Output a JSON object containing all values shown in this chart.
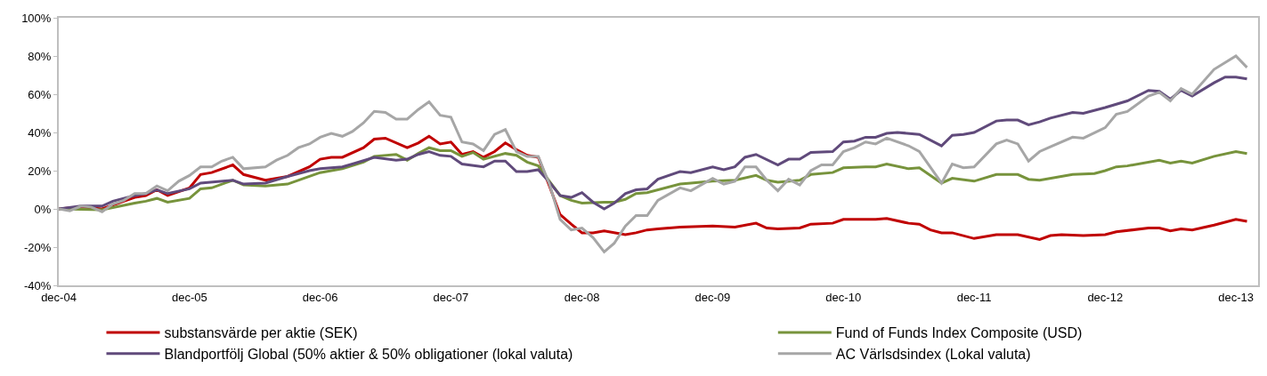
{
  "chart_data": {
    "type": "line",
    "xlim": [
      "2004-12",
      "2014-02"
    ],
    "xticks": [
      {
        "value": "2004-12",
        "label": "dec-04"
      },
      {
        "value": "2005-12",
        "label": "dec-05"
      },
      {
        "value": "2006-12",
        "label": "dec-06"
      },
      {
        "value": "2007-12",
        "label": "dec-07"
      },
      {
        "value": "2008-12",
        "label": "dec-08"
      },
      {
        "value": "2009-12",
        "label": "dec-09"
      },
      {
        "value": "2010-12",
        "label": "dec-10"
      },
      {
        "value": "2011-12",
        "label": "dec-11"
      },
      {
        "value": "2012-12",
        "label": "dec-12"
      },
      {
        "value": "2013-12",
        "label": "dec-13"
      }
    ],
    "ylim": [
      -40,
      100
    ],
    "yticks": [
      {
        "value": -40,
        "label": "-40%"
      },
      {
        "value": -20,
        "label": "-20%"
      },
      {
        "value": 0,
        "label": "0%"
      },
      {
        "value": 20,
        "label": "20%"
      },
      {
        "value": 40,
        "label": "40%"
      },
      {
        "value": 60,
        "label": "60%"
      },
      {
        "value": 80,
        "label": "80%"
      },
      {
        "value": 100,
        "label": "100%"
      }
    ],
    "grid": false,
    "legend": "bottom",
    "marker": "none",
    "line_style": "solid",
    "series": [
      {
        "name": "substansvärde per aktie (SEK)",
        "color": "#c00000",
        "x": [
          "2004-12",
          "2005-02",
          "2005-04",
          "2005-07",
          "2005-08",
          "2005-09",
          "2005-10",
          "2005-12",
          "2006-01",
          "2006-02",
          "2006-04",
          "2006-05",
          "2006-07",
          "2006-09",
          "2006-11",
          "2006-12",
          "2007-01",
          "2007-02",
          "2007-04",
          "2007-05",
          "2007-06",
          "2007-08",
          "2007-09",
          "2007-10",
          "2007-11",
          "2007-12",
          "2008-01",
          "2008-02",
          "2008-03",
          "2008-04",
          "2008-05",
          "2008-06",
          "2008-07",
          "2008-08",
          "2008-09",
          "2008-10",
          "2008-11",
          "2008-12",
          "2009-01",
          "2009-02",
          "2009-04",
          "2009-05",
          "2009-06",
          "2009-07",
          "2009-09",
          "2009-12",
          "2010-02",
          "2010-04",
          "2010-05",
          "2010-06",
          "2010-08",
          "2010-09",
          "2010-11",
          "2010-12",
          "2011-01",
          "2011-03",
          "2011-04",
          "2011-06",
          "2011-07",
          "2011-08",
          "2011-09",
          "2011-10",
          "2011-12",
          "2012-02",
          "2012-04",
          "2012-06",
          "2012-07",
          "2012-08",
          "2012-10",
          "2012-12",
          "2013-01",
          "2013-04",
          "2013-05",
          "2013-06",
          "2013-07",
          "2013-08",
          "2013-10",
          "2013-12",
          "2014-01"
        ],
        "values": [
          0,
          1,
          0,
          6,
          7,
          10,
          7,
          11,
          18,
          19,
          23,
          18,
          15,
          17,
          22,
          26,
          27,
          27,
          32,
          36.5,
          37,
          32,
          34.5,
          38,
          34,
          35,
          28.5,
          30,
          27,
          30,
          34.5,
          31,
          28,
          27,
          12,
          -3,
          -8,
          -12.5,
          -12.5,
          -11.5,
          -13.5,
          -12.5,
          -11,
          -10.5,
          -9.5,
          -9,
          -9.5,
          -7.5,
          -10,
          -10.5,
          -10,
          -8,
          -7.5,
          -5.5,
          -5.5,
          -5.5,
          -5,
          -7.5,
          -8,
          -11,
          -12.5,
          -12.5,
          -15.5,
          -13.5,
          -13.5,
          -16,
          -14,
          -13.5,
          -14,
          -13.5,
          -12,
          -10,
          -10,
          -11.5,
          -10.5,
          -11,
          -8.5,
          -5.5,
          -6.5
        ]
      },
      {
        "name": "Fund of Funds Index Composite (USD)",
        "color": "#77933c",
        "x": [
          "2004-12",
          "2005-04",
          "2005-07",
          "2005-08",
          "2005-09",
          "2005-10",
          "2005-12",
          "2006-01",
          "2006-02",
          "2006-04",
          "2006-05",
          "2006-07",
          "2006-09",
          "2006-11",
          "2006-12",
          "2007-02",
          "2007-04",
          "2007-05",
          "2007-07",
          "2007-08",
          "2007-09",
          "2007-10",
          "2007-11",
          "2007-12",
          "2008-01",
          "2008-02",
          "2008-03",
          "2008-05",
          "2008-06",
          "2008-07",
          "2008-08",
          "2008-09",
          "2008-10",
          "2008-11",
          "2008-12",
          "2009-02",
          "2009-03",
          "2009-04",
          "2009-05",
          "2009-06",
          "2009-09",
          "2009-10",
          "2009-12",
          "2010-02",
          "2010-04",
          "2010-05",
          "2010-06",
          "2010-08",
          "2010-09",
          "2010-11",
          "2010-12",
          "2011-02",
          "2011-03",
          "2011-04",
          "2011-06",
          "2011-07",
          "2011-09",
          "2011-10",
          "2011-12",
          "2012-02",
          "2012-04",
          "2012-05",
          "2012-06",
          "2012-09",
          "2012-11",
          "2012-12",
          "2013-01",
          "2013-02",
          "2013-05",
          "2013-06",
          "2013-07",
          "2013-08",
          "2013-10",
          "2013-12",
          "2014-01"
        ],
        "values": [
          0,
          -0.5,
          3,
          4,
          5.5,
          3.5,
          5.5,
          10.5,
          11,
          15,
          12.5,
          12,
          13,
          17,
          19,
          21,
          24.5,
          27.5,
          28.5,
          25.5,
          29,
          32,
          30.5,
          30.5,
          27.5,
          29.5,
          26,
          29,
          28,
          24.5,
          22.5,
          14.5,
          7,
          4.5,
          3,
          3.5,
          3.5,
          5,
          8,
          8.5,
          13,
          13.5,
          14.5,
          15,
          17.5,
          15,
          14,
          15,
          18,
          19,
          21.5,
          22,
          22,
          23.5,
          21,
          21.5,
          13.5,
          16,
          14.5,
          18,
          18,
          15.5,
          15,
          18,
          18.5,
          20,
          22,
          22.5,
          25.5,
          24,
          25,
          24,
          27.5,
          30,
          29
        ]
      },
      {
        "name": "Blandportfölj Global (50% aktier & 50% obligationer (lokal valuta)",
        "color": "#604a7b",
        "x": [
          "2004-12",
          "2005-02",
          "2005-04",
          "2005-05",
          "2005-07",
          "2005-08",
          "2005-09",
          "2005-10",
          "2005-12",
          "2006-01",
          "2006-04",
          "2006-05",
          "2006-07",
          "2006-09",
          "2006-11",
          "2006-12",
          "2007-02",
          "2007-03",
          "2007-05",
          "2007-07",
          "2007-08",
          "2007-09",
          "2007-10",
          "2007-11",
          "2007-12",
          "2008-01",
          "2008-03",
          "2008-04",
          "2008-05",
          "2008-06",
          "2008-07",
          "2008-08",
          "2008-09",
          "2008-10",
          "2008-11",
          "2008-12",
          "2009-01",
          "2009-02",
          "2009-03",
          "2009-04",
          "2009-05",
          "2009-06",
          "2009-07",
          "2009-09",
          "2009-10",
          "2009-12",
          "2010-01",
          "2010-02",
          "2010-03",
          "2010-04",
          "2010-06",
          "2010-07",
          "2010-08",
          "2010-09",
          "2010-11",
          "2010-12",
          "2011-01",
          "2011-02",
          "2011-03",
          "2011-04",
          "2011-05",
          "2011-07",
          "2011-09",
          "2011-10",
          "2011-11",
          "2011-12",
          "2012-02",
          "2012-03",
          "2012-04",
          "2012-05",
          "2012-06",
          "2012-07",
          "2012-09",
          "2012-10",
          "2012-12",
          "2013-02",
          "2013-04",
          "2013-05",
          "2013-06",
          "2013-07",
          "2013-08",
          "2013-10",
          "2013-11",
          "2013-12",
          "2014-01"
        ],
        "values": [
          0,
          1.5,
          1.5,
          4,
          7,
          8,
          10,
          8,
          10.5,
          13.5,
          15,
          13,
          13.5,
          17,
          20,
          21,
          22,
          23.5,
          27,
          25.5,
          26,
          28.5,
          30,
          28,
          27.5,
          23.5,
          22,
          25,
          25,
          19.5,
          19.5,
          20.5,
          14,
          7,
          6,
          8.5,
          3.5,
          0,
          3,
          8,
          10,
          10.5,
          15.5,
          19.5,
          19,
          22,
          20.5,
          22,
          27,
          28.5,
          23,
          26,
          26,
          29.5,
          30,
          35,
          35.5,
          37.5,
          37.5,
          39.5,
          40,
          39,
          33,
          38.5,
          39,
          40,
          46,
          46.5,
          46.5,
          44,
          45.5,
          47.5,
          50.5,
          50,
          53,
          56.5,
          62,
          61.5,
          57.5,
          62,
          59,
          66,
          69,
          69,
          68
        ]
      },
      {
        "name": "AC Värlsdsindex (Lokal valuta)",
        "color": "#a6a6a6",
        "x": [
          "2004-12",
          "2005-01",
          "2005-02",
          "2005-03",
          "2005-04",
          "2005-05",
          "2005-06",
          "2005-07",
          "2005-08",
          "2005-09",
          "2005-10",
          "2005-11",
          "2005-12",
          "2006-01",
          "2006-02",
          "2006-03",
          "2006-04",
          "2006-05",
          "2006-07",
          "2006-08",
          "2006-09",
          "2006-10",
          "2006-11",
          "2006-12",
          "2007-01",
          "2007-02",
          "2007-03",
          "2007-04",
          "2007-05",
          "2007-06",
          "2007-07",
          "2007-08",
          "2007-09",
          "2007-10",
          "2007-11",
          "2007-12",
          "2008-01",
          "2008-02",
          "2008-03",
          "2008-04",
          "2008-05",
          "2008-06",
          "2008-07",
          "2008-08",
          "2008-09",
          "2008-10",
          "2008-11",
          "2008-12",
          "2009-01",
          "2009-02",
          "2009-03",
          "2009-04",
          "2009-05",
          "2009-06",
          "2009-07",
          "2009-09",
          "2009-10",
          "2009-12",
          "2010-01",
          "2010-02",
          "2010-03",
          "2010-04",
          "2010-05",
          "2010-06",
          "2010-07",
          "2010-08",
          "2010-09",
          "2010-10",
          "2010-11",
          "2010-12",
          "2011-01",
          "2011-02",
          "2011-03",
          "2011-04",
          "2011-06",
          "2011-07",
          "2011-09",
          "2011-10",
          "2011-11",
          "2011-12",
          "2012-02",
          "2012-03",
          "2012-04",
          "2012-05",
          "2012-06",
          "2012-07",
          "2012-09",
          "2012-10",
          "2012-12",
          "2013-01",
          "2013-02",
          "2013-04",
          "2013-05",
          "2013-06",
          "2013-07",
          "2013-08",
          "2013-10",
          "2013-12",
          "2014-01"
        ],
        "values": [
          0,
          -1,
          1.5,
          1,
          -1.5,
          2.5,
          4.5,
          8,
          8,
          12,
          9.5,
          14.5,
          17.5,
          22,
          22,
          25,
          27,
          21,
          22,
          25.5,
          28,
          32,
          34,
          37.5,
          39.5,
          38,
          40.5,
          45,
          51,
          50.5,
          47,
          47,
          52,
          56,
          49,
          48,
          35,
          34,
          30.5,
          39,
          41.5,
          30,
          27.5,
          27.5,
          13,
          -5.5,
          -11,
          -10,
          -15,
          -22.5,
          -18,
          -9,
          -3.5,
          -3.5,
          4.5,
          11,
          9.5,
          16,
          13,
          14.5,
          22,
          22,
          15,
          9.5,
          15.5,
          12.5,
          20,
          23,
          23,
          30,
          32,
          35,
          34,
          37,
          33,
          30,
          13.5,
          23.5,
          21.5,
          22,
          34,
          36,
          34,
          25,
          30,
          32.5,
          37.5,
          37,
          42.5,
          49.5,
          51,
          59,
          61,
          56.5,
          63,
          60,
          73,
          80,
          74
        ]
      }
    ]
  }
}
